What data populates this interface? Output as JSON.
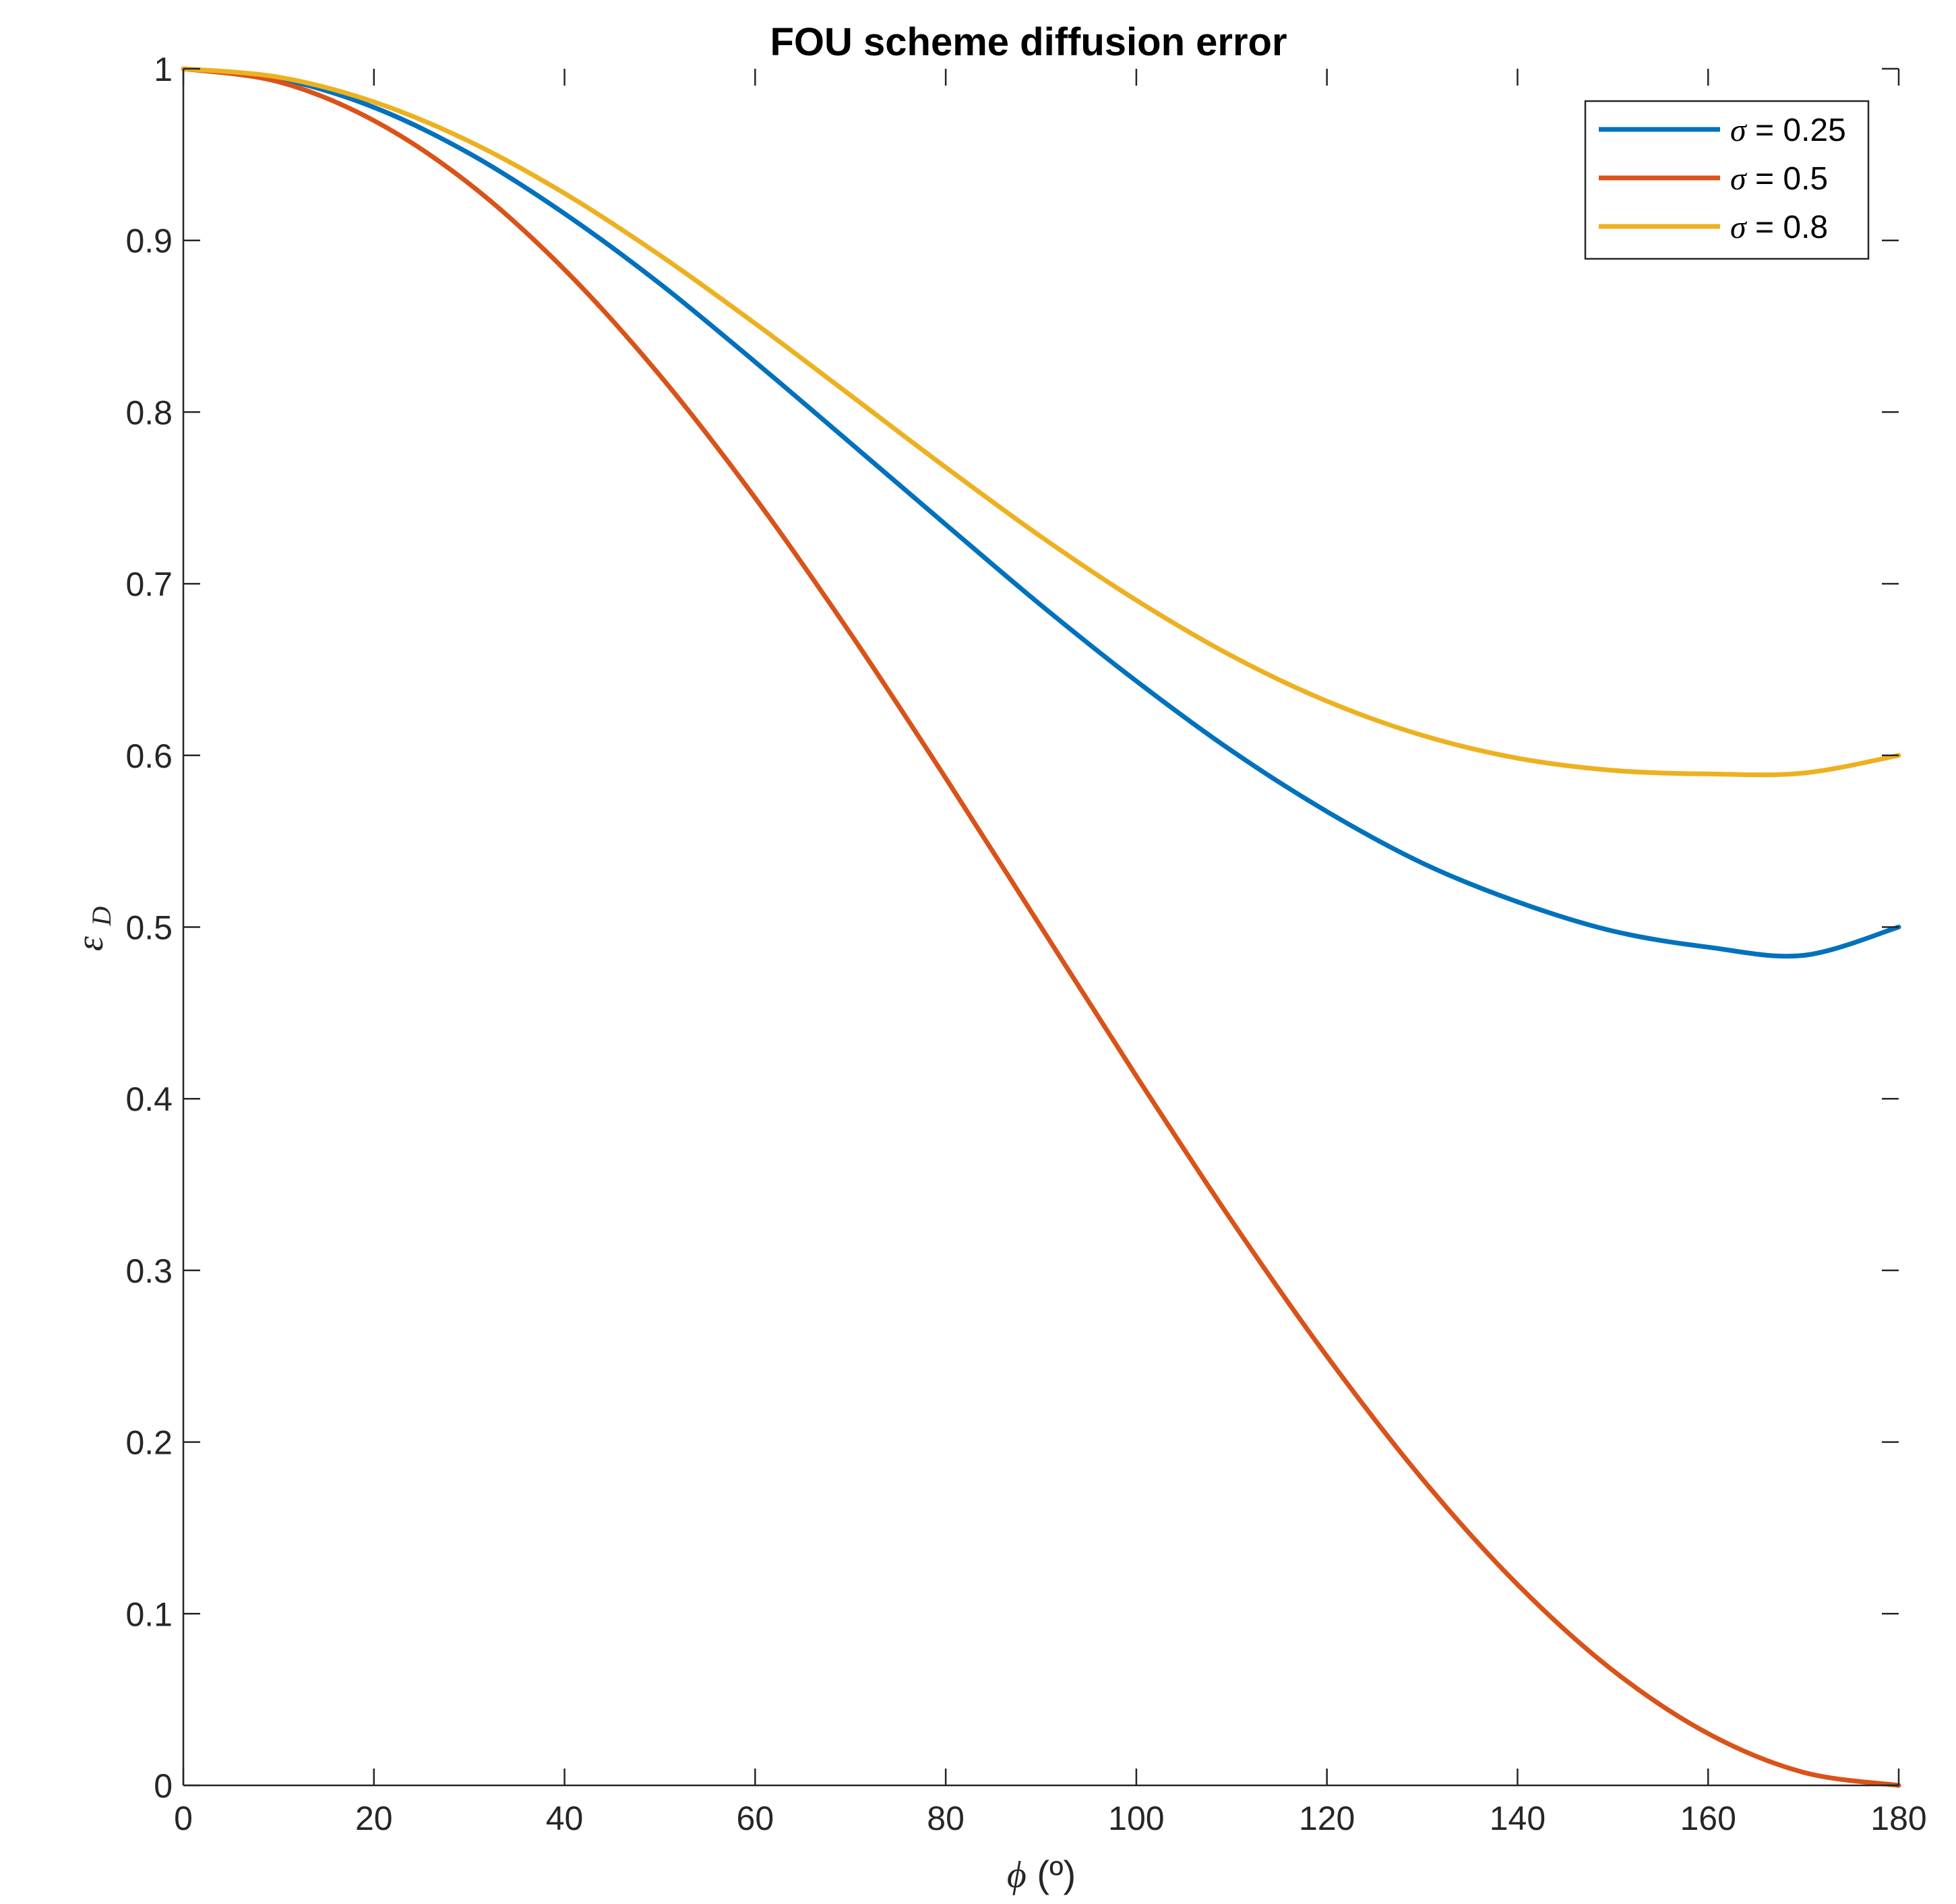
{
  "chart_data": {
    "type": "line",
    "title": "FOU scheme diffusion error",
    "xlabel": {
      "symbol": "ϕ",
      "unit": "(º)"
    },
    "ylabel": {
      "symbol": "ε",
      "subscript": "D"
    },
    "xlim": [
      0,
      180
    ],
    "ylim": [
      0,
      1
    ],
    "xticks": [
      0,
      20,
      40,
      60,
      80,
      100,
      120,
      140,
      160,
      180
    ],
    "xtick_labels": [
      "0",
      "20",
      "40",
      "60",
      "80",
      "100",
      "120",
      "140",
      "160",
      "180"
    ],
    "yticks": [
      0,
      0.1,
      0.2,
      0.3,
      0.4,
      0.5,
      0.6,
      0.7,
      0.8,
      0.9,
      1
    ],
    "ytick_labels": [
      "0",
      "0.1",
      "0.2",
      "0.3",
      "0.4",
      "0.5",
      "0.6",
      "0.7",
      "0.8",
      "0.9",
      "1"
    ],
    "grid": false,
    "legend_position": "top-right",
    "x": [
      0,
      10,
      20,
      30,
      40,
      50,
      60,
      70,
      80,
      90,
      100,
      110,
      120,
      130,
      140,
      150,
      160,
      170,
      180
    ],
    "series": [
      {
        "name": "σ = 0.25",
        "symbol": "σ",
        "value_label": " = 0.25",
        "color": "#0072BD",
        "values": [
          1.0,
          0.9943,
          0.9775,
          0.9507,
          0.9156,
          0.8748,
          0.8292,
          0.782,
          0.7345,
          0.6875,
          0.6433,
          0.6027,
          0.5673,
          0.5373,
          0.5147,
          0.4977,
          0.4883,
          0.4835,
          0.5
        ]
      },
      {
        "name": "σ = 0.5",
        "symbol": "σ",
        "value_label": " = 0.5",
        "color": "#D95319",
        "values": [
          1.0,
          0.9924,
          0.9698,
          0.933,
          0.883,
          0.8214,
          0.75,
          0.671,
          0.5868,
          0.5,
          0.4132,
          0.329,
          0.25,
          0.1786,
          0.117,
          0.067,
          0.0302,
          0.0076,
          0.0
        ]
      },
      {
        "name": "σ = 0.8",
        "symbol": "σ",
        "value_label": " = 0.8",
        "color": "#EDB120",
        "values": [
          1.0,
          0.9951,
          0.9807,
          0.9577,
          0.9274,
          0.8914,
          0.8516,
          0.8098,
          0.7678,
          0.7274,
          0.6904,
          0.658,
          0.6316,
          0.6117,
          0.5984,
          0.5913,
          0.5892,
          0.5897,
          0.6
        ]
      }
    ]
  }
}
